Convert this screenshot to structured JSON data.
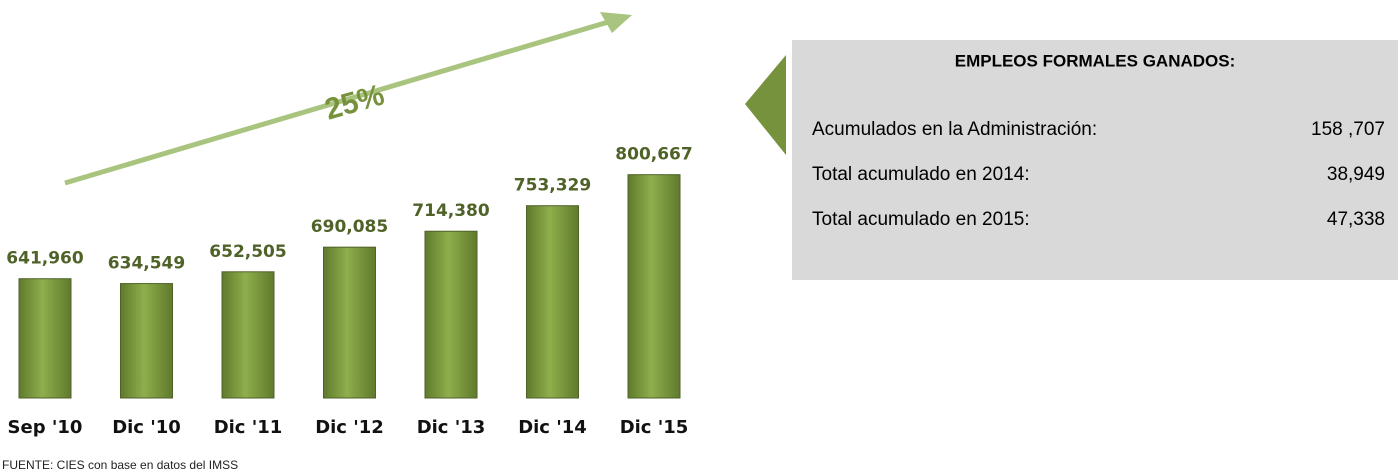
{
  "chart_data": {
    "type": "bar",
    "categories": [
      "Sep '10",
      "Dic '10",
      "Dic '11",
      "Dic '12",
      "Dic '13",
      "Dic '14",
      "Dic '15"
    ],
    "values": [
      641960,
      634549,
      652505,
      690085,
      714380,
      753329,
      800667
    ],
    "value_labels": [
      "641,960",
      "634,549",
      "652,505",
      "690,085",
      "714,380",
      "753,329",
      "800,667"
    ],
    "color": "#77933c",
    "ylim": [
      460000,
      820000
    ],
    "annotation": "25%",
    "source": "FUENTE: CIES con base en datos del IMSS"
  },
  "panel": {
    "title": "EMPLEOS FORMALES GANADOS:",
    "rows": [
      {
        "label": "Acumulados en la Administración:",
        "value": "158 ,707"
      },
      {
        "label": "Total acumulado en 2014:",
        "value": "38,949"
      },
      {
        "label": "Total acumulado en 2015:",
        "value": "47,338"
      }
    ]
  }
}
